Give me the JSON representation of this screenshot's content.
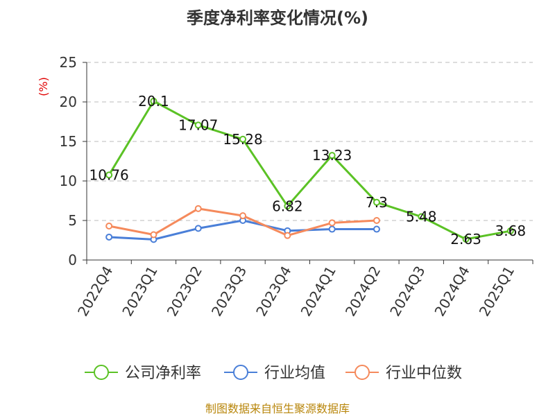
{
  "chart_data": {
    "type": "line",
    "title": "季度净利率变化情况(%)",
    "ylabel": "(%)",
    "ylim": [
      0,
      25
    ],
    "yticks": [
      0,
      5,
      10,
      15,
      20,
      25
    ],
    "grid": true,
    "legend_position": "bottom",
    "categories": [
      "2022Q4",
      "2023Q1",
      "2023Q2",
      "2023Q3",
      "2023Q4",
      "2024Q1",
      "2024Q2",
      "2024Q3",
      "2024Q4",
      "2025Q1"
    ],
    "series": [
      {
        "name": "公司净利率",
        "color": "#5bc225",
        "values": [
          10.76,
          20.1,
          17.07,
          15.28,
          6.82,
          13.23,
          7.3,
          5.48,
          2.63,
          3.68
        ],
        "labels": [
          "10.76",
          "20.1",
          "17.07",
          "15.28",
          "6.82",
          "13.23",
          "7.3",
          "5.48",
          "2.63",
          "3.68"
        ]
      },
      {
        "name": "行业均值",
        "color": "#4a7fd8",
        "values": [
          2.9,
          2.6,
          4.0,
          5.0,
          3.7,
          3.9,
          3.9,
          null,
          null,
          null
        ]
      },
      {
        "name": "行业中位数",
        "color": "#f58a5c",
        "values": [
          4.3,
          3.2,
          6.5,
          5.6,
          3.1,
          4.7,
          5.0,
          null,
          null,
          null
        ]
      }
    ],
    "source": "制图数据来自恒生聚源数据库"
  }
}
